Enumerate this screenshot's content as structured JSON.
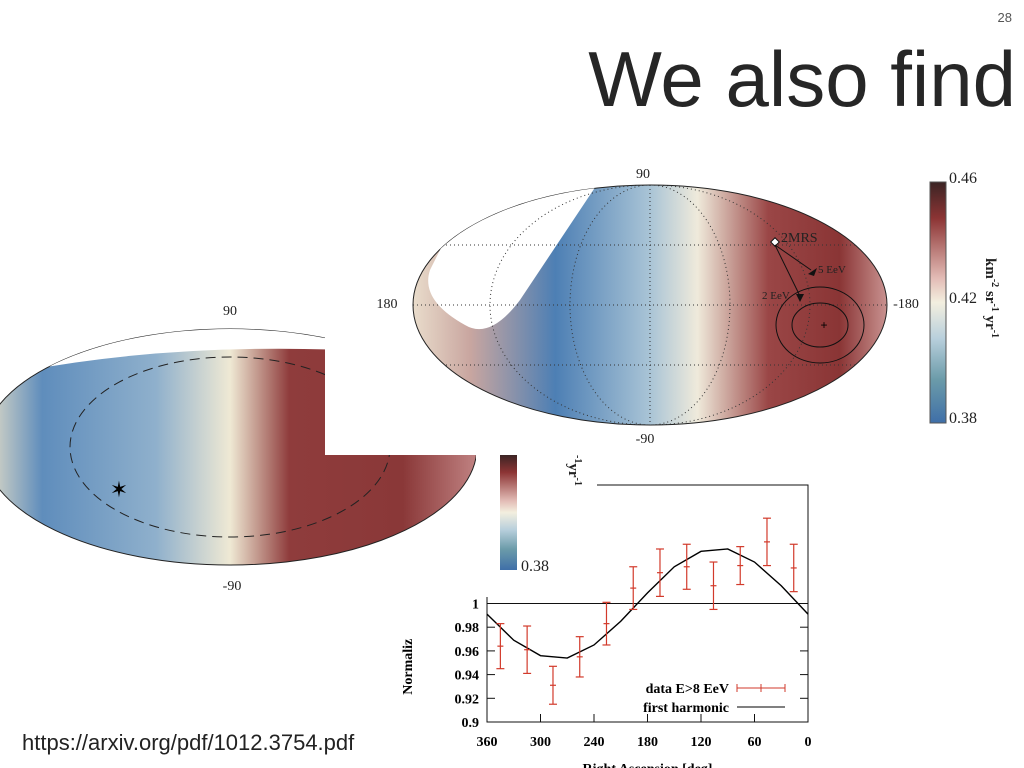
{
  "slide_number": "28",
  "title": "We also find",
  "link": "https://arxiv.org/pdf/1012.3754.pdf",
  "map_right": {
    "top_label": "90",
    "bottom_label": "-90",
    "left_label": "180",
    "right_label": "-180",
    "source_label": "2MRS",
    "arrow_labels": [
      "5 EeV",
      "2 EeV"
    ],
    "colorbar_labels": [
      "0.46",
      "0.42",
      "0.38"
    ],
    "colorbar_title": [
      "km",
      "-2",
      " sr",
      "-1",
      " yr",
      "-1"
    ]
  },
  "map_left": {
    "top_label": "90",
    "bottom_label": "-90",
    "colorbar_label": "0.38",
    "colorbar_title": [
      "-1",
      "yr",
      "-1"
    ]
  },
  "plot": {
    "y_label": "Normaliz",
    "x_label": "Right Ascension [deg]",
    "xlim": [
      360,
      0
    ],
    "ylim": [
      0.9,
      1.1
    ],
    "xticks": [
      360,
      300,
      240,
      180,
      120,
      60,
      0
    ],
    "yticks": [
      0.9,
      0.92,
      0.94,
      0.96,
      0.98,
      1
    ],
    "series": [
      {
        "name": "data E>8 EeV",
        "color": "#d23a2b",
        "x": [
          345,
          315,
          286,
          256,
          226,
          196,
          166,
          136,
          106,
          76,
          46,
          16
        ],
        "values": [
          0.964,
          0.961,
          0.931,
          0.955,
          0.983,
          1.013,
          1.026,
          1.031,
          1.015,
          1.032,
          1.052,
          1.03
        ],
        "errors": [
          0.019,
          0.02,
          0.016,
          0.017,
          0.018,
          0.018,
          0.02,
          0.019,
          0.02,
          0.016,
          0.02,
          0.02
        ]
      },
      {
        "name": "first harmonic",
        "color": "#000000",
        "x": [
          360,
          330,
          300,
          270,
          240,
          210,
          180,
          150,
          120,
          90,
          60,
          30,
          0
        ],
        "values": [
          0.991,
          0.969,
          0.956,
          0.954,
          0.965,
          0.985,
          1.009,
          1.031,
          1.044,
          1.046,
          1.035,
          1.015,
          0.991
        ]
      }
    ]
  }
}
